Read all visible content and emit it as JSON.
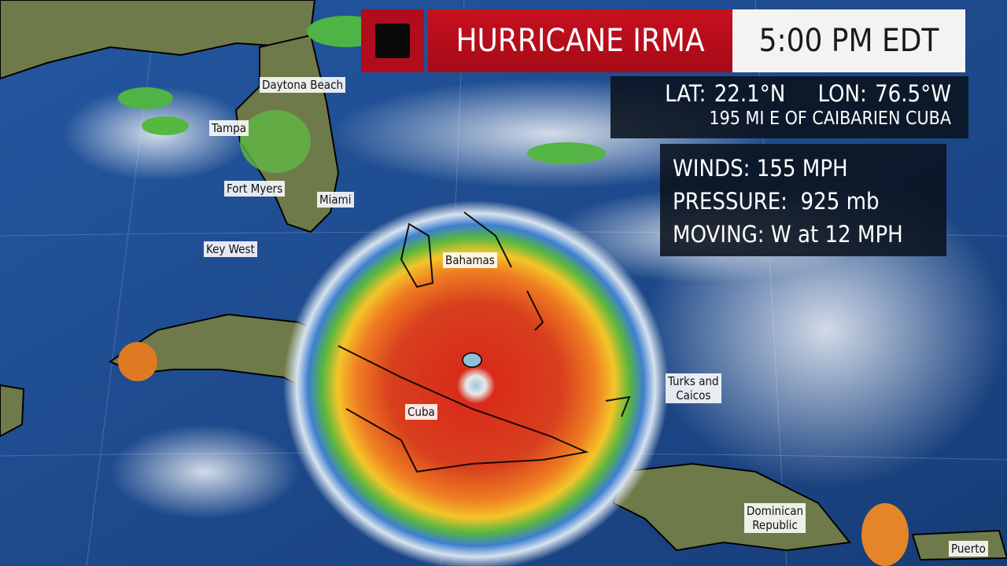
{
  "header": {
    "category_icon": "black-square-icon",
    "storm_name": "HURRICANE IRMA",
    "time": "5:00 PM EDT"
  },
  "position": {
    "lat": "LAT: 22.1°N",
    "lon": "LON: 76.5°W",
    "location": "195 MI E OF CAIBARIEN CUBA"
  },
  "stats": {
    "winds": "WINDS: 155 MPH",
    "pressure": "PRESSURE:  925 mb",
    "moving": "MOVING: W at 12 MPH"
  },
  "map_labels": {
    "daytona_beach": "Daytona Beach",
    "tampa": "Tampa",
    "fort_myers": "Fort Myers",
    "miami": "Miami",
    "key_west": "Key West",
    "bahamas": "Bahamas",
    "turks_and_caicos_1": "Turks and",
    "turks_and_caicos_2": "Caicos",
    "cuba": "Cuba",
    "dominican_republic_1": "Dominican",
    "dominican_republic_2": "Republic",
    "puerto_rico": "Puerto"
  },
  "colors": {
    "ocean": "#1d4a86",
    "banner_red": "#b00c1c",
    "radar_core": "#c8261c"
  }
}
